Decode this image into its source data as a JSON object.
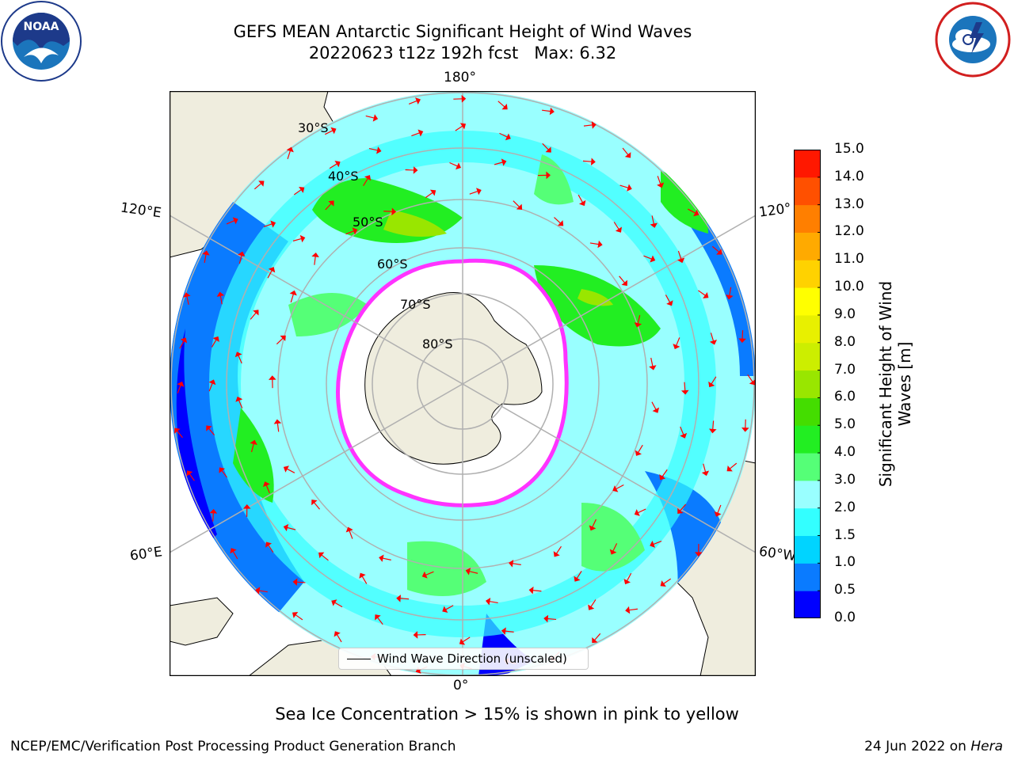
{
  "header": {
    "title": "GEFS MEAN Antarctic Significant Height of Wind Waves",
    "subtitle_run": "20220623 t12z 192h fcst",
    "subtitle_max": "Max: 6.32"
  },
  "logos": {
    "left": "NOAA",
    "right": "NATIONAL WEATHER SERVICE"
  },
  "map": {
    "projection": "south-polar-stereographic",
    "lon_labels": {
      "top": "180°",
      "bottom": "0°",
      "left_upper": "120°E",
      "left_lower": "60°E",
      "right_upper": "120°",
      "right_lower": "60°W"
    },
    "lat_labels": [
      "30°S",
      "40°S",
      "50°S",
      "60°S",
      "70°S",
      "80°S"
    ],
    "colors": {
      "land": "#efedde",
      "ice": "#ffffff",
      "ice_edge": "#ff33ff",
      "arrow": "#ff0000"
    }
  },
  "legend": {
    "label": "Wind Wave Direction (unscaled)"
  },
  "colorbar": {
    "title": "Significant Height of Wind Waves [m]",
    "ticks": [
      "0.0",
      "0.5",
      "1.0",
      "1.5",
      "2.0",
      "3.0",
      "4.0",
      "5.0",
      "6.0",
      "7.0",
      "8.0",
      "9.0",
      "10.0",
      "11.0",
      "12.0",
      "13.0",
      "14.0",
      "15.0"
    ],
    "colors": [
      "#0000ff",
      "#0a7bff",
      "#00d4ff",
      "#33ffff",
      "#99ffff",
      "#55ff77",
      "#22ee22",
      "#44dd00",
      "#99e600",
      "#ccee00",
      "#e8f000",
      "#ffff00",
      "#ffd200",
      "#ffaa00",
      "#ff7f00",
      "#ff5000",
      "#ff1800"
    ]
  },
  "footer": {
    "caption": "Sea Ice Concentration > 15% is shown in pink to yellow",
    "credit": "NCEP/EMC/Verification Post Processing Product Generation Branch",
    "date_prefix": "24 Jun 2022 on ",
    "date_machine": "Hera"
  }
}
